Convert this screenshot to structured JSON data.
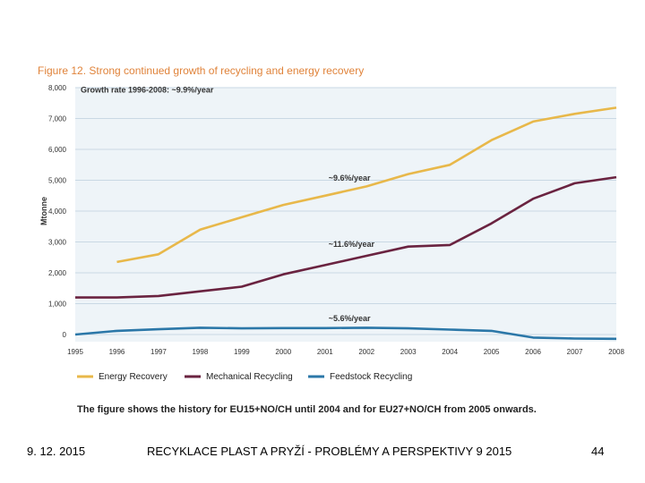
{
  "figure": {
    "title": "Figure 12. Strong continued growth of recycling and energy recovery",
    "caption": "The figure shows the history for EU15+NO/CH until 2004 and for EU27+NO/CH from 2005 onwards."
  },
  "chart_data": {
    "type": "line",
    "title": "Figure 12. Strong continued growth of recycling and energy recovery",
    "ylabel": "Mtonne",
    "xlabel": "",
    "x": [
      "1995",
      "1996",
      "1997",
      "1998",
      "1999",
      "2000",
      "2001",
      "2002",
      "2003",
      "2004",
      "2005",
      "2006",
      "2007",
      "2008"
    ],
    "ylim": [
      0,
      8000
    ],
    "yticks": [
      "0",
      "1,000",
      "2,000",
      "3,000",
      "4,000",
      "5,000",
      "6,000",
      "7,000",
      "8,000"
    ],
    "grid": true,
    "legend_position": "bottom",
    "series": [
      {
        "name": "Energy Recovery",
        "color": "#e8b84a",
        "values": [
          null,
          2350,
          2600,
          3400,
          3800,
          4200,
          4500,
          4800,
          5200,
          5500,
          6300,
          6900,
          7150,
          7350
        ]
      },
      {
        "name": "Mechanical Recycling",
        "color": "#6a2340",
        "values": [
          1200,
          1200,
          1250,
          1400,
          1550,
          1950,
          2250,
          2550,
          2850,
          2900,
          3600,
          4400,
          4900,
          5100
        ]
      },
      {
        "name": "Feedstock Recycling",
        "color": "#2b77a8",
        "values": [
          0,
          120,
          170,
          220,
          200,
          210,
          210,
          220,
          200,
          160,
          120,
          -100,
          -130,
          -140
        ]
      }
    ],
    "annotations": [
      {
        "text": "Growth rate 1996-2008: ~9.9%/year",
        "x": "1995",
        "y": 7950
      },
      {
        "text": "~9.6%/year",
        "x": "2001",
        "y": 5100
      },
      {
        "text": "~11.6%/year",
        "x": "2001",
        "y": 2950
      },
      {
        "text": "~5.6%/year",
        "x": "2001",
        "y": 550
      }
    ]
  },
  "footer": {
    "date": "9. 12. 2015",
    "title": "RECYKLACE PLAST A PRYŽÍ - PROBLÉMY A PERSPEKTIVY 9 2015",
    "page": "44"
  }
}
